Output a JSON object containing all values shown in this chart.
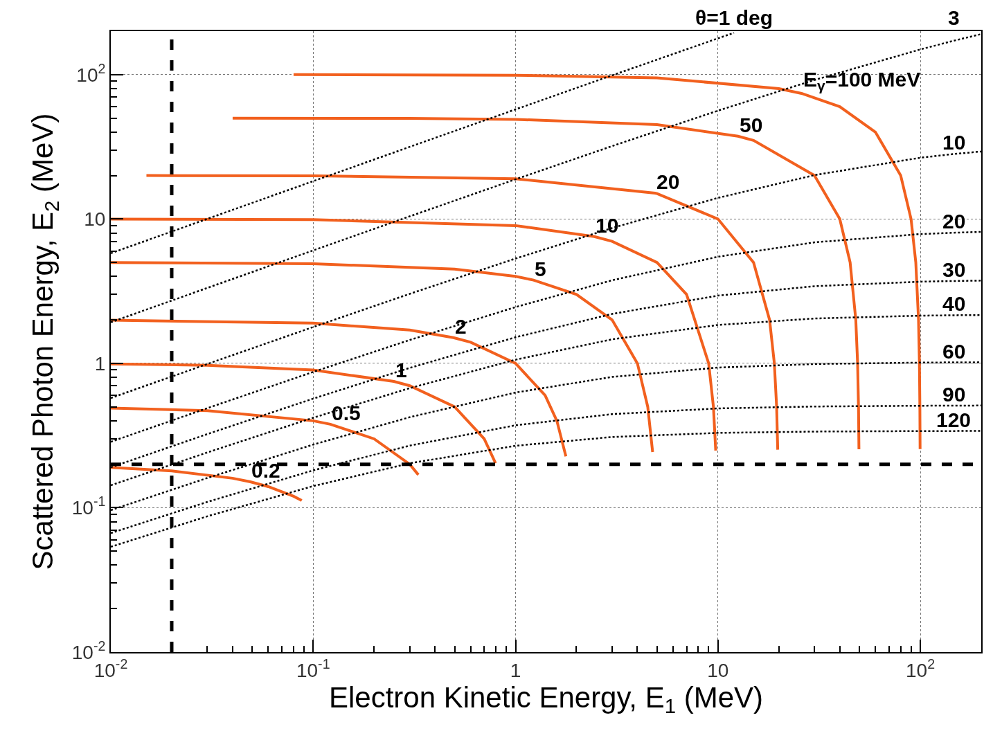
{
  "chart_data": {
    "type": "line",
    "xlabel": "Electron Kinetic Energy, E$_{1}$ (MeV)",
    "ylabel": "Scattered Photon Energy, E$_{2}$ (MeV)",
    "log": "xy",
    "grid": true,
    "marker": "none",
    "xlim": [
      0.01,
      200
    ],
    "ylim": [
      0.01,
      200
    ],
    "xticks": [
      {
        "value": 0.01,
        "label": "10$^{-2}$"
      },
      {
        "value": 0.1,
        "label": "10$^{-1}$"
      },
      1,
      10,
      {
        "value": 100,
        "label": "10$^{2}$"
      }
    ],
    "yticks": [
      {
        "value": 0.01,
        "label": "10$^{-2}$"
      },
      {
        "value": 0.1,
        "label": "10$^{-1}$"
      },
      1,
      10,
      {
        "value": 100,
        "label": "10$^{2}$"
      }
    ],
    "series": [
      {
        "color": "#f2601e",
        "line_style": "solid",
        "x": [
          0.01,
          0.02,
          0.04,
          0.0489,
          0.06,
          0.08,
          0.0878
        ],
        "values": [
          0.19,
          0.18,
          0.16,
          0.1511,
          0.14,
          0.12,
          0.1122
        ]
      },
      {
        "color": "#f2601e",
        "line_style": "solid",
        "x": [
          0.01,
          0.03,
          0.1,
          0.1216,
          0.2,
          0.3,
          0.3309
        ],
        "values": [
          0.49,
          0.47,
          0.4,
          0.3784,
          0.3,
          0.2,
          0.1691
        ]
      },
      {
        "color": "#f2601e",
        "line_style": "solid",
        "x": [
          0.01,
          0.03,
          0.1,
          0.2506,
          0.3,
          0.5,
          0.7,
          0.7965
        ],
        "values": [
          0.99,
          0.97,
          0.9,
          0.7494,
          0.7,
          0.5,
          0.3,
          0.2035
        ]
      },
      {
        "color": "#f2601e",
        "line_style": "solid",
        "x": [
          0.01,
          0.1,
          0.3,
          0.493,
          0.6,
          1,
          1.4,
          1.6,
          1.7734
        ],
        "values": [
          1.99,
          1.9,
          1.7,
          1.507,
          1.4,
          1,
          0.6,
          0.4,
          0.2266
        ]
      },
      {
        "color": "#f2601e",
        "line_style": "solid",
        "x": [
          0.01,
          0.1,
          0.5,
          1,
          1.227,
          2,
          3,
          4,
          4.5,
          4.7569
        ],
        "values": [
          4.99,
          4.9,
          4.5,
          4,
          3.773,
          3,
          2,
          1,
          0.5,
          0.2431
        ]
      },
      {
        "color": "#f2601e",
        "line_style": "solid",
        "x": [
          0.01,
          0.1,
          1,
          2.45,
          3,
          5,
          7,
          9,
          9.5,
          9.7509
        ],
        "values": [
          9.99,
          9.9,
          9,
          7.55,
          7,
          5,
          3,
          1,
          0.5,
          0.2491
        ]
      },
      {
        "color": "#f2601e",
        "line_style": "solid",
        "x": [
          0.015,
          0.1,
          1,
          4.89,
          5,
          10,
          15,
          18,
          19,
          19.5,
          19.7477
        ],
        "values": [
          19.985,
          19.9,
          19,
          15.11,
          15,
          10,
          5,
          2,
          1,
          0.5,
          0.2523
        ]
      },
      {
        "color": "#f2601e",
        "line_style": "solid",
        "x": [
          0.04,
          0.3,
          1,
          5,
          12.56,
          15,
          30,
          40,
          45,
          48,
          49,
          49.5,
          49.7458
        ],
        "values": [
          49.96,
          49.7,
          49,
          45,
          37.44,
          35,
          20,
          10,
          5,
          2,
          1,
          0.5,
          0.2542
        ]
      },
      {
        "color": "#f2601e",
        "line_style": "solid",
        "x": [
          0.08,
          1,
          5,
          20,
          25.9,
          40,
          60,
          80,
          90,
          95,
          98,
          99,
          99.5,
          99.745
        ],
        "values": [
          99.92,
          99,
          95,
          80,
          74.1,
          60,
          40,
          20,
          10,
          5,
          2,
          1,
          0.5,
          0.2548
        ]
      },
      {
        "color": "#000000",
        "line_style": "dotted",
        "x": [
          0.01,
          0.03,
          0.1,
          0.3,
          1,
          3,
          10,
          12
        ],
        "values": [
          5.79,
          10.02,
          18.27,
          31.58,
          57.43,
          98.8,
          178.3,
          194.7
        ]
      },
      {
        "color": "#000000",
        "line_style": "dotted",
        "x": [
          0.01,
          0.03,
          0.1,
          0.3,
          1,
          3,
          10,
          30,
          100,
          146,
          200
        ],
        "values": [
          1.926,
          3.33,
          6.056,
          10.43,
          18.82,
          31.98,
          56.26,
          91.8,
          149.4,
          171.5,
          190.8
        ]
      },
      {
        "color": "#000000",
        "line_style": "dotted",
        "x": [
          0.01,
          0.03,
          0.1,
          0.3,
          1,
          3,
          10,
          30,
          100,
          146,
          200
        ],
        "values": [
          0.575,
          0.99,
          1.785,
          3.03,
          5.32,
          8.657,
          14.0,
          20.13,
          26.57,
          28.19,
          29.33
        ]
      },
      {
        "color": "#000000",
        "line_style": "dotted",
        "x": [
          0.01,
          0.03,
          0.1,
          0.3,
          1,
          3,
          10,
          30,
          100,
          146,
          200
        ],
        "values": [
          0.2861,
          0.4894,
          0.872,
          1.451,
          2.453,
          3.761,
          5.475,
          6.89,
          7.86,
          8.03,
          8.14
        ]
      },
      {
        "color": "#000000",
        "line_style": "dotted",
        "x": [
          0.01,
          0.03,
          0.1,
          0.3,
          1,
          3,
          10,
          30,
          100,
          146,
          200
        ],
        "values": [
          0.1904,
          0.3236,
          0.5696,
          0.93,
          1.516,
          2.2,
          2.946,
          3.424,
          3.679,
          3.719,
          3.744
        ]
      },
      {
        "color": "#000000",
        "line_style": "dotted",
        "x": [
          0.01,
          0.03,
          0.1,
          0.3,
          1,
          3,
          10,
          30,
          100,
          146,
          200
        ],
        "values": [
          0.1429,
          0.2414,
          0.42,
          0.6732,
          1.0602,
          1.4669,
          1.844,
          2.045,
          2.139,
          2.153,
          2.161
        ]
      },
      {
        "color": "#000000",
        "line_style": "dotted",
        "x": [
          0.01,
          0.03,
          0.1,
          0.3,
          1,
          3,
          10,
          30,
          100,
          146,
          200
        ],
        "values": [
          0.0962,
          0.1607,
          0.2736,
          0.4237,
          0.6278,
          0.8057,
          0.9347,
          0.9894,
          1.012,
          1.015,
          1.017
        ]
      },
      {
        "color": "#000000",
        "line_style": "dotted",
        "x": [
          0.01,
          0.03,
          0.1,
          0.3,
          1,
          3,
          10,
          30,
          100,
          146,
          200
        ],
        "values": [
          0.0667,
          0.1097,
          0.1815,
          0.2693,
          0.3724,
          0.445,
          0.4873,
          0.5025,
          0.5085,
          0.5092,
          0.5102
        ]
      },
      {
        "color": "#000000",
        "line_style": "dotted",
        "x": [
          0.01,
          0.03,
          0.1,
          0.3,
          1,
          3,
          10,
          30,
          100,
          146,
          200
        ],
        "values": [
          0.0536,
          0.0872,
          0.1412,
          0.2031,
          0.2686,
          0.3089,
          0.3298,
          0.337,
          0.3396,
          0.3399,
          0.3401
        ]
      }
    ],
    "ref_lines": [
      {
        "axis": "x",
        "value": 0.02,
        "color": "#000000",
        "line_style": "dashed"
      },
      {
        "axis": "y",
        "value": 0.2,
        "color": "#000000",
        "line_style": "dashed"
      }
    ],
    "annotations": [
      {
        "text": "0.2",
        "x": 0.0489,
        "y": 0.1511
      },
      {
        "text": "0.5",
        "x": 0.1216,
        "y": 0.3784
      },
      {
        "text": "1",
        "x": 0.2506,
        "y": 0.7494
      },
      {
        "text": "2",
        "x": 0.493,
        "y": 1.507
      },
      {
        "text": "5",
        "x": 1.227,
        "y": 3.773
      },
      {
        "text": "10",
        "x": 2.45,
        "y": 7.55
      },
      {
        "text": "20",
        "x": 4.89,
        "y": 15.11
      },
      {
        "text": "50",
        "x": 12.56,
        "y": 37.44
      },
      {
        "text": "E$_{γ}$=100 MeV",
        "x": 25.9,
        "y": 74.1
      },
      {
        "text": "θ=1 deg",
        "x": 12,
        "y": 194.7
      },
      {
        "text": "3",
        "x": 146,
        "y": 171.5
      },
      {
        "text": "10",
        "x": 146,
        "y": 28.19
      },
      {
        "text": "20",
        "x": 146,
        "y": 8.03
      },
      {
        "text": "30",
        "x": 146,
        "y": 3.719
      },
      {
        "text": "40",
        "x": 146,
        "y": 2.153
      },
      {
        "text": "60",
        "x": 146,
        "y": 1.015
      },
      {
        "text": "90",
        "x": 146,
        "y": 0.5092
      },
      {
        "text": "120",
        "x": 146,
        "y": 0.3399
      }
    ]
  }
}
